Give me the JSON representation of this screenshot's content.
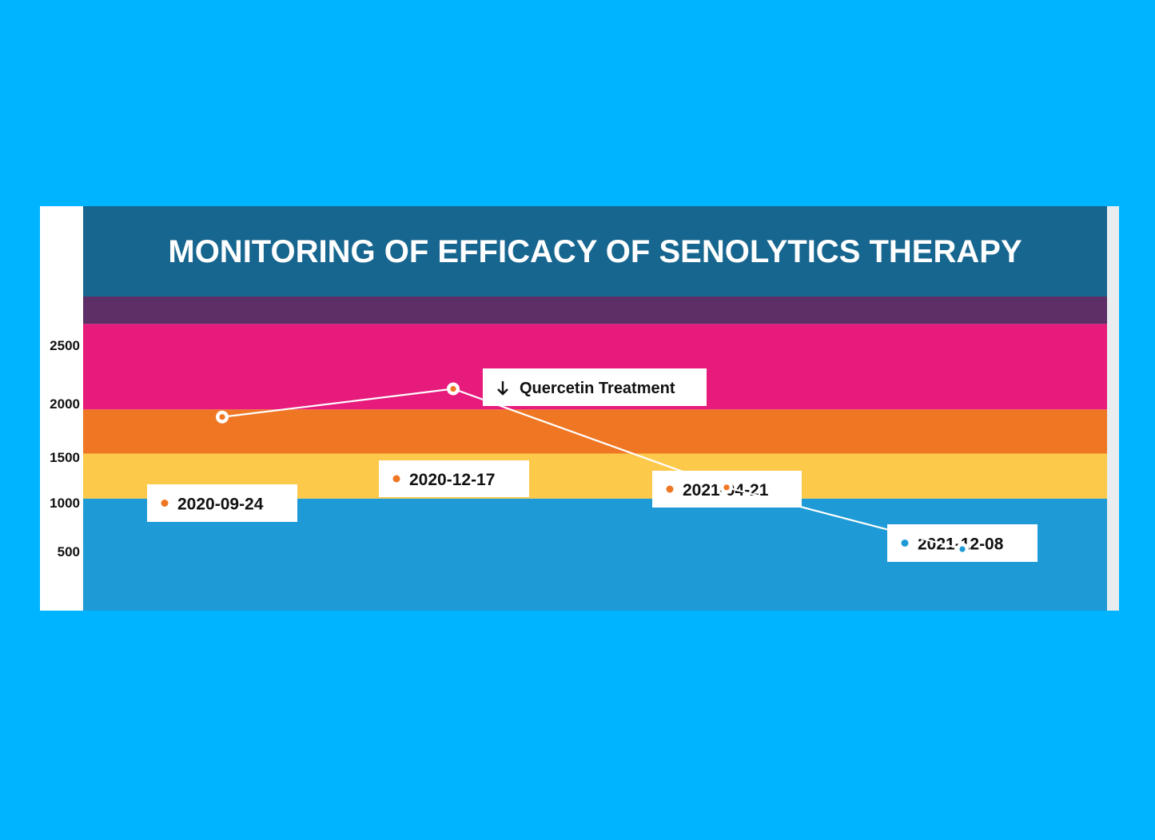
{
  "chart_data": {
    "type": "line",
    "title": "MONITORING OF EFFICACY OF SENOLYTICS THERAPY",
    "xlabel": "",
    "ylabel": "",
    "ylim": [
      0,
      3000
    ],
    "y_ticks": [
      500,
      1000,
      1500,
      2000,
      2500
    ],
    "grid": false,
    "legend": "none",
    "series": [
      {
        "points": [
          {
            "x": "2020-09-24",
            "y": 1500,
            "label": "2020-09-24",
            "dot_color": "#ef7623"
          },
          {
            "x": "2020-12-17",
            "y": 1760,
            "label": "2020-12-17",
            "dot_color": "#ef7623"
          },
          {
            "x": "2021-04-21",
            "y": 850,
            "label": "2021-04-21",
            "dot_color": "#ef7623"
          },
          {
            "x": "2021-12-08",
            "y": 280,
            "label": "2021-12-08",
            "dot_color": "#1e9ad6"
          }
        ]
      }
    ],
    "bands": [
      {
        "from": 0,
        "to": 880,
        "color": "#1e9ad6"
      },
      {
        "from": 880,
        "to": 1370,
        "color": "#fdc94a"
      },
      {
        "from": 1370,
        "to": 1850,
        "color": "#ef7623"
      },
      {
        "from": 1850,
        "to": 2780,
        "color": "#e61b7b"
      },
      {
        "from": 2780,
        "to": 3000,
        "color": "#5e2f67"
      }
    ],
    "annotations": [
      {
        "text": "Quercetin Treatment",
        "icon": "arrow-down-icon",
        "y": 2350,
        "x_fraction": 0.5
      }
    ],
    "colors": {
      "header": "#17668f",
      "line": "#ffffff",
      "page_background": "#00b4ff"
    }
  }
}
